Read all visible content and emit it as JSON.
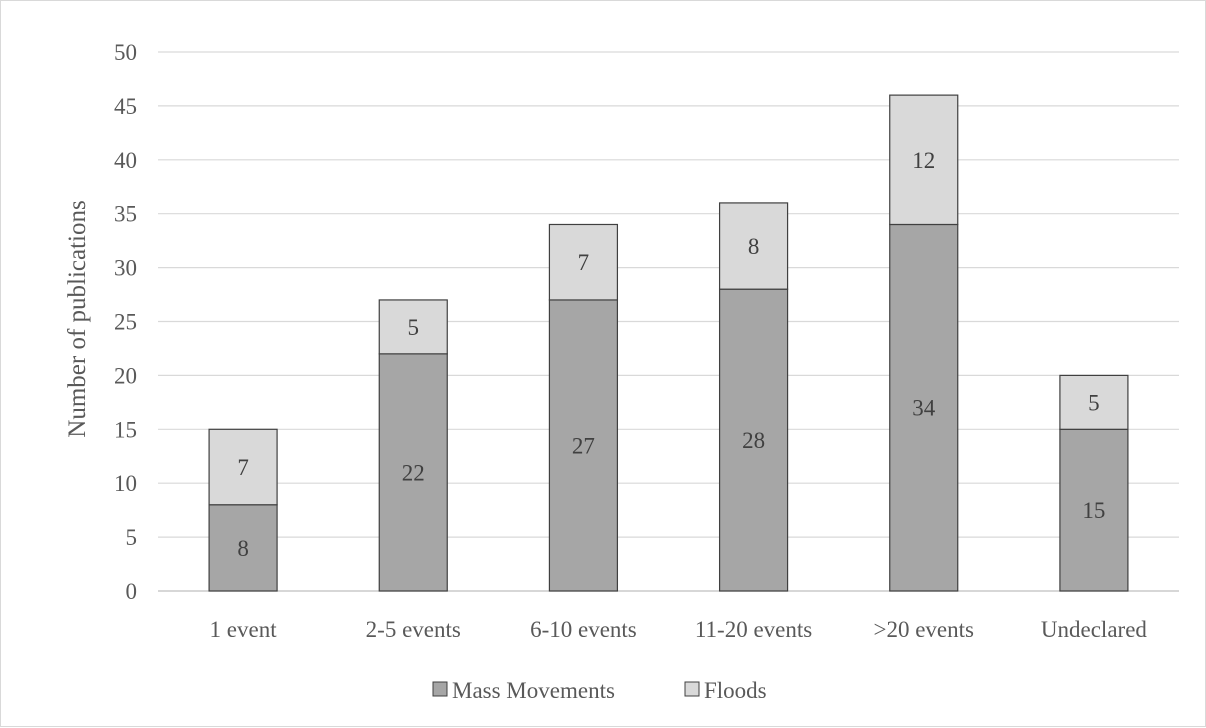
{
  "chart_data": {
    "type": "bar",
    "stacked": true,
    "title": "",
    "xlabel": "",
    "ylabel": "Number of publications",
    "ylim": [
      0,
      50
    ],
    "ytick_step": 5,
    "grid": true,
    "legend_placement": "bottom",
    "categories": [
      "1 event",
      "2-5 events",
      "6-10 events",
      "11-20 events",
      ">20 events",
      "Undeclared"
    ],
    "series": [
      {
        "name": "Mass Movements",
        "values": [
          8,
          22,
          27,
          28,
          34,
          15
        ],
        "color": "#a6a6a6"
      },
      {
        "name": "Floods",
        "values": [
          7,
          5,
          7,
          8,
          12,
          5
        ],
        "color": "#d9d9d9"
      }
    ]
  }
}
